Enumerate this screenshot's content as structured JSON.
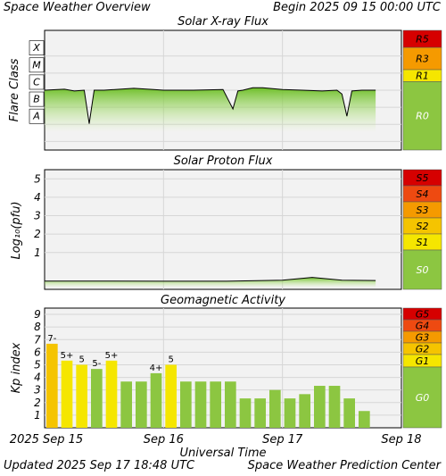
{
  "header": {
    "title": "Space Weather Overview",
    "begin": "Begin 2025 09 15 00:00 UTC"
  },
  "footer": {
    "updated": "Updated 2025 Sep 17 18:48 UTC",
    "center": "Space Weather Prediction Center"
  },
  "colors": {
    "panel_bg": "#f2f2f2",
    "grid": "#d6d6d6",
    "scale_green": "#8cc641",
    "scale_yellow": "#f5e600",
    "scale_yellow_orange": "#f5c400",
    "scale_orange": "#f59a00",
    "scale_red_orange": "#ee4a11",
    "scale_red": "#d60000",
    "bar_green": "#8cc641",
    "bar_yellow": "#f5e600",
    "bar_yellow_orange": "#f5c400",
    "flux_line": "#000000"
  },
  "chart_data": [
    {
      "type": "line",
      "title": "Solar X-ray Flux",
      "ylabel": "Flare Class",
      "y_scale": "log",
      "y_ticks": [
        "A",
        "B",
        "C",
        "M",
        "X"
      ],
      "ylim": [
        1e-08,
        0.001
      ],
      "xlim": [
        "2025-09-15 00:00",
        "2025-09-18 00:00"
      ],
      "grid": true,
      "scale_labels": [
        {
          "label": "R5",
          "color": "#d60000"
        },
        {
          "label": "R3",
          "color": "#f59a00"
        },
        {
          "label": "R1",
          "color": "#f5e600"
        },
        {
          "label": "R0",
          "color": "#8cc641"
        }
      ],
      "series": [
        {
          "x": [
            "09-15 00:00",
            "09-15 04:00",
            "09-15 06:00",
            "09-15 08:00",
            "09-15 09:00",
            "09-15 10:00",
            "09-15 12:00",
            "09-15 18:00",
            "09-15 22:00",
            "09-16 00:00",
            "09-16 06:00",
            "09-16 12:00",
            "09-16 14:00",
            "09-16 15:00",
            "09-16 16:00",
            "09-16 18:00",
            "09-16 20:00",
            "09-17 00:00",
            "09-17 04:00",
            "09-17 08:00",
            "09-17 11:00",
            "09-17 12:00",
            "09-17 13:00",
            "09-17 14:00",
            "09-17 16:00",
            "09-17 18:48"
          ],
          "y": [
            1e-06,
            1.15e-06,
            9e-07,
            1e-06,
            1.1e-08,
            1e-06,
            1e-06,
            1.3e-06,
            1.1e-06,
            1e-06,
            1e-06,
            1.1e-06,
            8e-08,
            9e-07,
            1e-06,
            1.4e-06,
            1.4e-06,
            1.1e-06,
            1e-06,
            9e-07,
            1e-06,
            6e-07,
            3e-08,
            9e-07,
            1e-06,
            1e-06
          ]
        }
      ]
    },
    {
      "type": "line",
      "title": "Solar Proton Flux",
      "ylabel": "Log₁₀(pfu)",
      "y_ticks": [
        "1",
        "2",
        "3",
        "4",
        "5"
      ],
      "ylim": [
        -1,
        5.5
      ],
      "xlim": [
        "2025-09-15 00:00",
        "2025-09-18 00:00"
      ],
      "grid": true,
      "scale_labels": [
        {
          "label": "S5",
          "color": "#d60000"
        },
        {
          "label": "S4",
          "color": "#ee4a11"
        },
        {
          "label": "S3",
          "color": "#f59a00"
        },
        {
          "label": "S2",
          "color": "#f5c400"
        },
        {
          "label": "S1",
          "color": "#f5e600"
        },
        {
          "label": "S0",
          "color": "#8cc641"
        }
      ],
      "series": [
        {
          "x": [
            "09-15 00:00",
            "09-15 12:00",
            "09-16 00:00",
            "09-16 12:00",
            "09-17 00:00",
            "09-17 06:00",
            "09-17 12:00",
            "09-17 18:48"
          ],
          "y": [
            -0.55,
            -0.55,
            -0.56,
            -0.56,
            -0.5,
            -0.35,
            -0.5,
            -0.52
          ]
        }
      ]
    },
    {
      "type": "bar",
      "title": "Geomagnetic Activity",
      "ylabel": "Kp index",
      "xlabel": "Universal Time",
      "ylim": [
        0,
        9.5
      ],
      "y_ticks": [
        "1",
        "2",
        "3",
        "4",
        "5",
        "6",
        "7",
        "8",
        "9"
      ],
      "x_ticks": [
        "2025 Sep 15",
        "Sep 16",
        "Sep 17",
        "Sep 18"
      ],
      "grid": true,
      "scale_labels": [
        {
          "label": "G5",
          "color": "#d60000"
        },
        {
          "label": "G4",
          "color": "#ee4a11"
        },
        {
          "label": "G3",
          "color": "#f59a00"
        },
        {
          "label": "G2",
          "color": "#f5c400"
        },
        {
          "label": "G1",
          "color": "#f5e600"
        },
        {
          "label": "G0",
          "color": "#8cc641"
        }
      ],
      "values": [
        6.67,
        5.33,
        5.0,
        4.67,
        5.33,
        3.67,
        3.67,
        4.33,
        5.0,
        3.67,
        3.67,
        3.67,
        3.67,
        2.33,
        2.33,
        3.0,
        2.33,
        2.67,
        3.33,
        3.33,
        2.33,
        1.33
      ],
      "data_labels": [
        "7-",
        "5+",
        "5",
        "5-",
        "5+",
        "",
        "",
        "4+",
        "5",
        "",
        "",
        "",
        "",
        "",
        "",
        "",
        "",
        "",
        "",
        "",
        "",
        ""
      ]
    }
  ]
}
